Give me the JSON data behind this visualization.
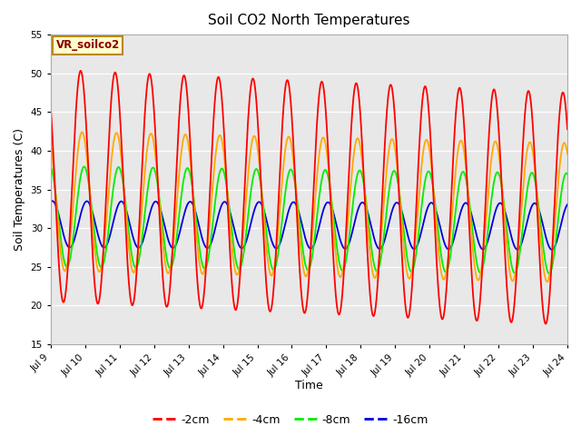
{
  "title": "Soil CO2 North Temperatures",
  "xlabel": "Time",
  "ylabel": "Soil Temperatures (C)",
  "ylim": [
    15,
    55
  ],
  "yticks": [
    15,
    20,
    25,
    30,
    35,
    40,
    45,
    50,
    55
  ],
  "xtick_labels": [
    "Jul 9",
    "Jul 10",
    "Jul 11",
    "Jul 12",
    "Jul 13",
    "Jul 14",
    "Jul 15",
    "Jul 16",
    "Jul 17",
    "Jul 18",
    "Jul 19",
    "Jul 20",
    "Jul 21",
    "Jul 22",
    "Jul 23",
    "Jul 24"
  ],
  "box_label": "VR_soilco2",
  "legend_entries": [
    "-2cm",
    "-4cm",
    "-8cm",
    "-16cm"
  ],
  "line_colors": [
    "#ff0000",
    "#ffaa00",
    "#00ee00",
    "#0000dd"
  ],
  "background_color": "#e8e8e8",
  "title_fontsize": 11,
  "n_days": 15,
  "samples_per_day": 144,
  "series_2cm": {
    "mean": 35.5,
    "amp": 15.0,
    "phase": 0.62,
    "trend": -0.2
  },
  "series_4cm": {
    "mean": 33.5,
    "amp": 9.0,
    "phase": 0.66,
    "trend": -0.1
  },
  "series_8cm": {
    "mean": 31.5,
    "amp": 6.5,
    "phase": 0.72,
    "trend": -0.06
  },
  "series_16cm": {
    "mean": 30.5,
    "amp": 3.0,
    "phase": 0.8,
    "trend": -0.02
  }
}
